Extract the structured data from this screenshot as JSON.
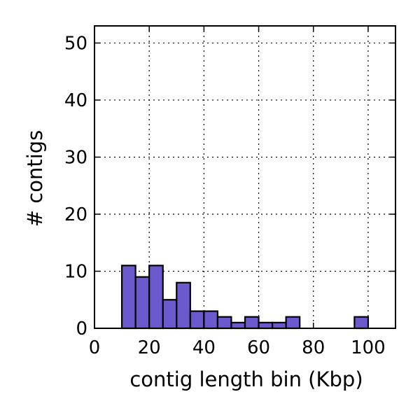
{
  "chart_data": {
    "type": "bar",
    "subtype": "histogram",
    "title": "",
    "xlabel": "contig length bin (Kbp)",
    "ylabel": "# contigs",
    "xlim": [
      0,
      110
    ],
    "ylim": [
      0,
      53
    ],
    "xticks": [
      0,
      20,
      40,
      60,
      80,
      100
    ],
    "yticks": [
      0,
      10,
      20,
      30,
      40,
      50
    ],
    "grid": true,
    "bin_width": 5,
    "bins": [
      {
        "start": 0,
        "end": 5,
        "count": 0
      },
      {
        "start": 5,
        "end": 10,
        "count": 0
      },
      {
        "start": 10,
        "end": 15,
        "count": 11
      },
      {
        "start": 15,
        "end": 20,
        "count": 9
      },
      {
        "start": 20,
        "end": 25,
        "count": 11
      },
      {
        "start": 25,
        "end": 30,
        "count": 5
      },
      {
        "start": 30,
        "end": 35,
        "count": 8
      },
      {
        "start": 35,
        "end": 40,
        "count": 3
      },
      {
        "start": 40,
        "end": 45,
        "count": 3
      },
      {
        "start": 45,
        "end": 50,
        "count": 2
      },
      {
        "start": 50,
        "end": 55,
        "count": 1
      },
      {
        "start": 55,
        "end": 60,
        "count": 2
      },
      {
        "start": 60,
        "end": 65,
        "count": 1
      },
      {
        "start": 65,
        "end": 70,
        "count": 1
      },
      {
        "start": 70,
        "end": 75,
        "count": 2
      },
      {
        "start": 75,
        "end": 80,
        "count": 0
      },
      {
        "start": 80,
        "end": 85,
        "count": 0
      },
      {
        "start": 85,
        "end": 90,
        "count": 0
      },
      {
        "start": 90,
        "end": 95,
        "count": 0
      },
      {
        "start": 95,
        "end": 100,
        "count": 2
      },
      {
        "start": 100,
        "end": 105,
        "count": 0
      },
      {
        "start": 105,
        "end": 110,
        "count": 0
      }
    ],
    "bar_color": "#6a5acd",
    "edge_color": "#000000"
  }
}
